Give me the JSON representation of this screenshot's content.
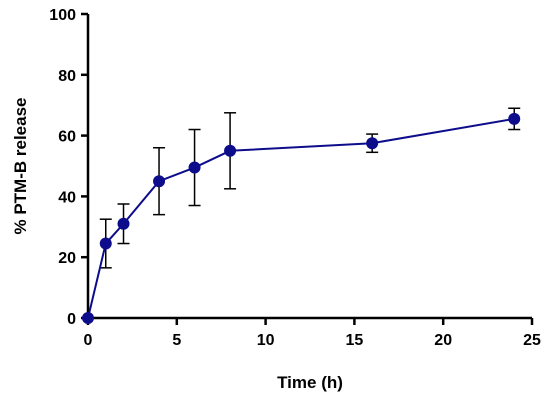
{
  "chart_data": {
    "type": "line",
    "title": "",
    "xlabel": "Time (h)",
    "ylabel": "% PTM-B release",
    "xlim": [
      0,
      25
    ],
    "ylim": [
      0,
      100
    ],
    "x_ticks": [
      0,
      5,
      10,
      15,
      20,
      25
    ],
    "y_ticks": [
      0,
      20,
      40,
      60,
      80,
      100
    ],
    "grid": false,
    "colors": {
      "series": "#0d0d8c",
      "axis": "#000000",
      "error_bar": "#000000"
    },
    "series": [
      {
        "x": [
          0,
          1,
          2,
          4,
          6,
          8,
          16,
          24
        ],
        "y": [
          0,
          24.5,
          31,
          45,
          49.5,
          55,
          57.5,
          65.5
        ],
        "error": [
          0,
          8,
          6.5,
          11,
          12.5,
          12.5,
          3,
          3.5
        ]
      }
    ]
  }
}
